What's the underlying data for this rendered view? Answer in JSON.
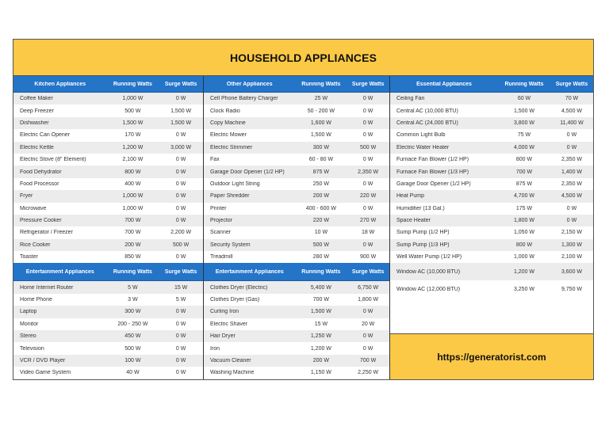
{
  "title": "HOUSEHOLD APPLIANCES",
  "colors": {
    "title_bg": "#fcc946",
    "header_bg": "#2474c8",
    "row_alt": "#ececec",
    "row": "#ffffff"
  },
  "columns": {
    "running": "Running Watts",
    "surge": "Surge Watts"
  },
  "kitchen": {
    "header": "Kitchen Appliances",
    "rows": [
      {
        "name": "Coffee Maker",
        "running": "1,000 W",
        "surge": "0 W"
      },
      {
        "name": "Deep Freezer",
        "running": "500 W",
        "surge": "1,500 W"
      },
      {
        "name": "Dishwasher",
        "running": "1,500 W",
        "surge": "1,500 W"
      },
      {
        "name": "Electric Can Opener",
        "running": "170 W",
        "surge": "0 W"
      },
      {
        "name": "Electric Kettle",
        "running": "1,200 W",
        "surge": "3,000 W"
      },
      {
        "name": "Electric Stove (8\" Element)",
        "running": "2,100 W",
        "surge": "0 W"
      },
      {
        "name": "Food Dehydrator",
        "running": "800 W",
        "surge": "0 W"
      },
      {
        "name": "Food Processor",
        "running": "400 W",
        "surge": "0 W"
      },
      {
        "name": "Fryer",
        "running": "1,000 W",
        "surge": "0 W"
      },
      {
        "name": "Microwave",
        "running": "1,000 W",
        "surge": "0 W"
      },
      {
        "name": "Pressure Cooker",
        "running": "700 W",
        "surge": "0 W"
      },
      {
        "name": "Refrigerator / Freezer",
        "running": "700 W",
        "surge": "2,200 W"
      },
      {
        "name": "Rice Cooker",
        "running": "200 W",
        "surge": "500 W"
      },
      {
        "name": "Toaster",
        "running": "850 W",
        "surge": "0 W"
      }
    ]
  },
  "entertainment": {
    "header": "Entertainment Appliances",
    "rows": [
      {
        "name": "Home Internet Router",
        "running": "5 W",
        "surge": "15 W"
      },
      {
        "name": "Home Phone",
        "running": "3 W",
        "surge": "5 W"
      },
      {
        "name": "Laptop",
        "running": "300 W",
        "surge": "0 W"
      },
      {
        "name": "Monitor",
        "running": "200 - 250 W",
        "surge": "0 W"
      },
      {
        "name": "Stereo",
        "running": "450 W",
        "surge": "0 W"
      },
      {
        "name": "Television",
        "running": "500 W",
        "surge": "0 W"
      },
      {
        "name": "VCR / DVD Player",
        "running": "100 W",
        "surge": "0 W"
      },
      {
        "name": "Video Game System",
        "running": "40 W",
        "surge": "0 W"
      }
    ]
  },
  "other": {
    "header": "Other Appliances",
    "rows": [
      {
        "name": "Cell Phone Battery Charger",
        "running": "25 W",
        "surge": "0 W"
      },
      {
        "name": "Clock Radio",
        "running": "50 - 200 W",
        "surge": "0 W"
      },
      {
        "name": "Copy Machine",
        "running": "1,600 W",
        "surge": "0 W"
      },
      {
        "name": "Electric Mower",
        "running": "1,500 W",
        "surge": "0 W"
      },
      {
        "name": "Electric Strimmer",
        "running": "300 W",
        "surge": "500 W"
      },
      {
        "name": "Fax",
        "running": "60 - 80 W",
        "surge": "0 W"
      },
      {
        "name": "Garage Door Opener (1/2 HP)",
        "running": "875 W",
        "surge": "2,350 W"
      },
      {
        "name": "Outdoor Light String",
        "running": "250 W",
        "surge": "0 W"
      },
      {
        "name": "Paper Shredder",
        "running": "200 W",
        "surge": "220 W"
      },
      {
        "name": "Printer",
        "running": "400 - 600 W",
        "surge": "0 W"
      },
      {
        "name": "Projector",
        "running": "220 W",
        "surge": "270 W"
      },
      {
        "name": "Scanner",
        "running": "10 W",
        "surge": "18 W"
      },
      {
        "name": "Security System",
        "running": "500 W",
        "surge": "0 W"
      },
      {
        "name": "Treadmill",
        "running": "280 W",
        "surge": "900 W"
      }
    ]
  },
  "entertainment2": {
    "header": "Entertainment Appliances",
    "rows": [
      {
        "name": "Clothes Dryer (Electric)",
        "running": "5,400 W",
        "surge": "6,750 W"
      },
      {
        "name": "Clothes Dryer (Gas)",
        "running": "700 W",
        "surge": "1,800 W"
      },
      {
        "name": "Curling Iron",
        "running": "1,500 W",
        "surge": "0 W"
      },
      {
        "name": "Electric Shaver",
        "running": "15 W",
        "surge": "20 W"
      },
      {
        "name": "Hair Dryer",
        "running": "1,250 W",
        "surge": "0 W"
      },
      {
        "name": "Iron",
        "running": "1,200 W",
        "surge": "0 W"
      },
      {
        "name": "Vacuum Cleaner",
        "running": "200 W",
        "surge": "700 W"
      },
      {
        "name": "Washing Machine",
        "running": "1,150 W",
        "surge": "2,250 W"
      }
    ]
  },
  "essential": {
    "header": "Essential Appliances",
    "rows": [
      {
        "name": "Ceiling Fan",
        "running": "60 W",
        "surge": "70 W"
      },
      {
        "name": "Central AC (10,000 BTU)",
        "running": "1,500 W",
        "surge": "4,500 W"
      },
      {
        "name": "Central AC (24,000 BTU)",
        "running": "3,800 W",
        "surge": "11,400 W"
      },
      {
        "name": "Common Light Bulb",
        "running": "75 W",
        "surge": "0 W"
      },
      {
        "name": "Electric Water Heater",
        "running": "4,000 W",
        "surge": "0 W"
      },
      {
        "name": "Furnace Fan Blower (1/2 HP)",
        "running": "800 W",
        "surge": "2,350 W"
      },
      {
        "name": "Furnace Fan Blower (1/3 HP)",
        "running": "700 W",
        "surge": "1,400 W"
      },
      {
        "name": "Garage Door Opener (1/2 HP)",
        "running": "875 W",
        "surge": "2,350 W"
      },
      {
        "name": "Heat Pump",
        "running": "4,700 W",
        "surge": "4,500 W"
      },
      {
        "name": "Humidifier (13 Gal.)",
        "running": "175 W",
        "surge": "0 W"
      },
      {
        "name": "Space Heater",
        "running": "1,800 W",
        "surge": "0 W"
      },
      {
        "name": "Sump Pump (1/2 HP)",
        "running": "1,050 W",
        "surge": "2,150 W"
      },
      {
        "name": "Sump Pump (1/3 HP)",
        "running": "800 W",
        "surge": "1,300 W"
      },
      {
        "name": "Well Water Pump (1/2 HP)",
        "running": "1,000 W",
        "surge": "2,100 W"
      },
      {
        "name": "Window AC (10,000 BTU)",
        "running": "1,200 W",
        "surge": "3,600 W"
      },
      {
        "name": "Window AC (12,000 BTU)",
        "running": "3,250 W",
        "surge": "9,750 W"
      }
    ]
  },
  "promo": {
    "url": "https://generatorist.com"
  }
}
